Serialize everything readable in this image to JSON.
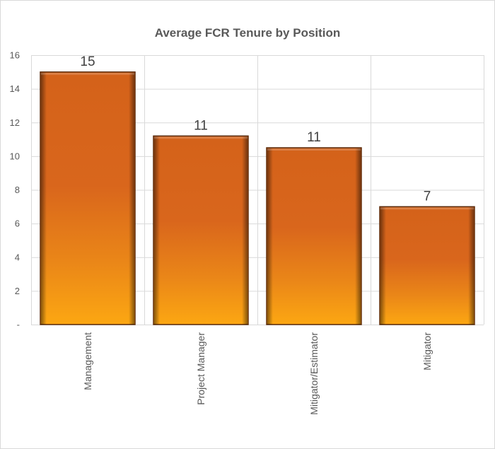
{
  "chart_data": {
    "type": "bar",
    "title": "Average FCR Tenure by Position",
    "categories": [
      "Management",
      "Project Manager",
      "Mitigator/Estimator",
      "Mitigator"
    ],
    "values": [
      15,
      11.2,
      10.5,
      7
    ],
    "data_labels": [
      "15",
      "11",
      "11",
      "7"
    ],
    "ylim": [
      0,
      16
    ],
    "yticks": [
      0,
      2,
      4,
      6,
      8,
      10,
      12,
      14,
      16
    ],
    "ytick_labels": [
      "-",
      "2",
      "4",
      "6",
      "8",
      "10",
      "12",
      "14",
      "16"
    ],
    "xlabel": "",
    "ylabel": "",
    "grid": true,
    "legend": "none",
    "colors": {
      "bar_light": "#fca712",
      "bar_mid": "#d9661c",
      "bar_edge": "#5b2a0a",
      "grid": "#d9d9d9"
    }
  }
}
